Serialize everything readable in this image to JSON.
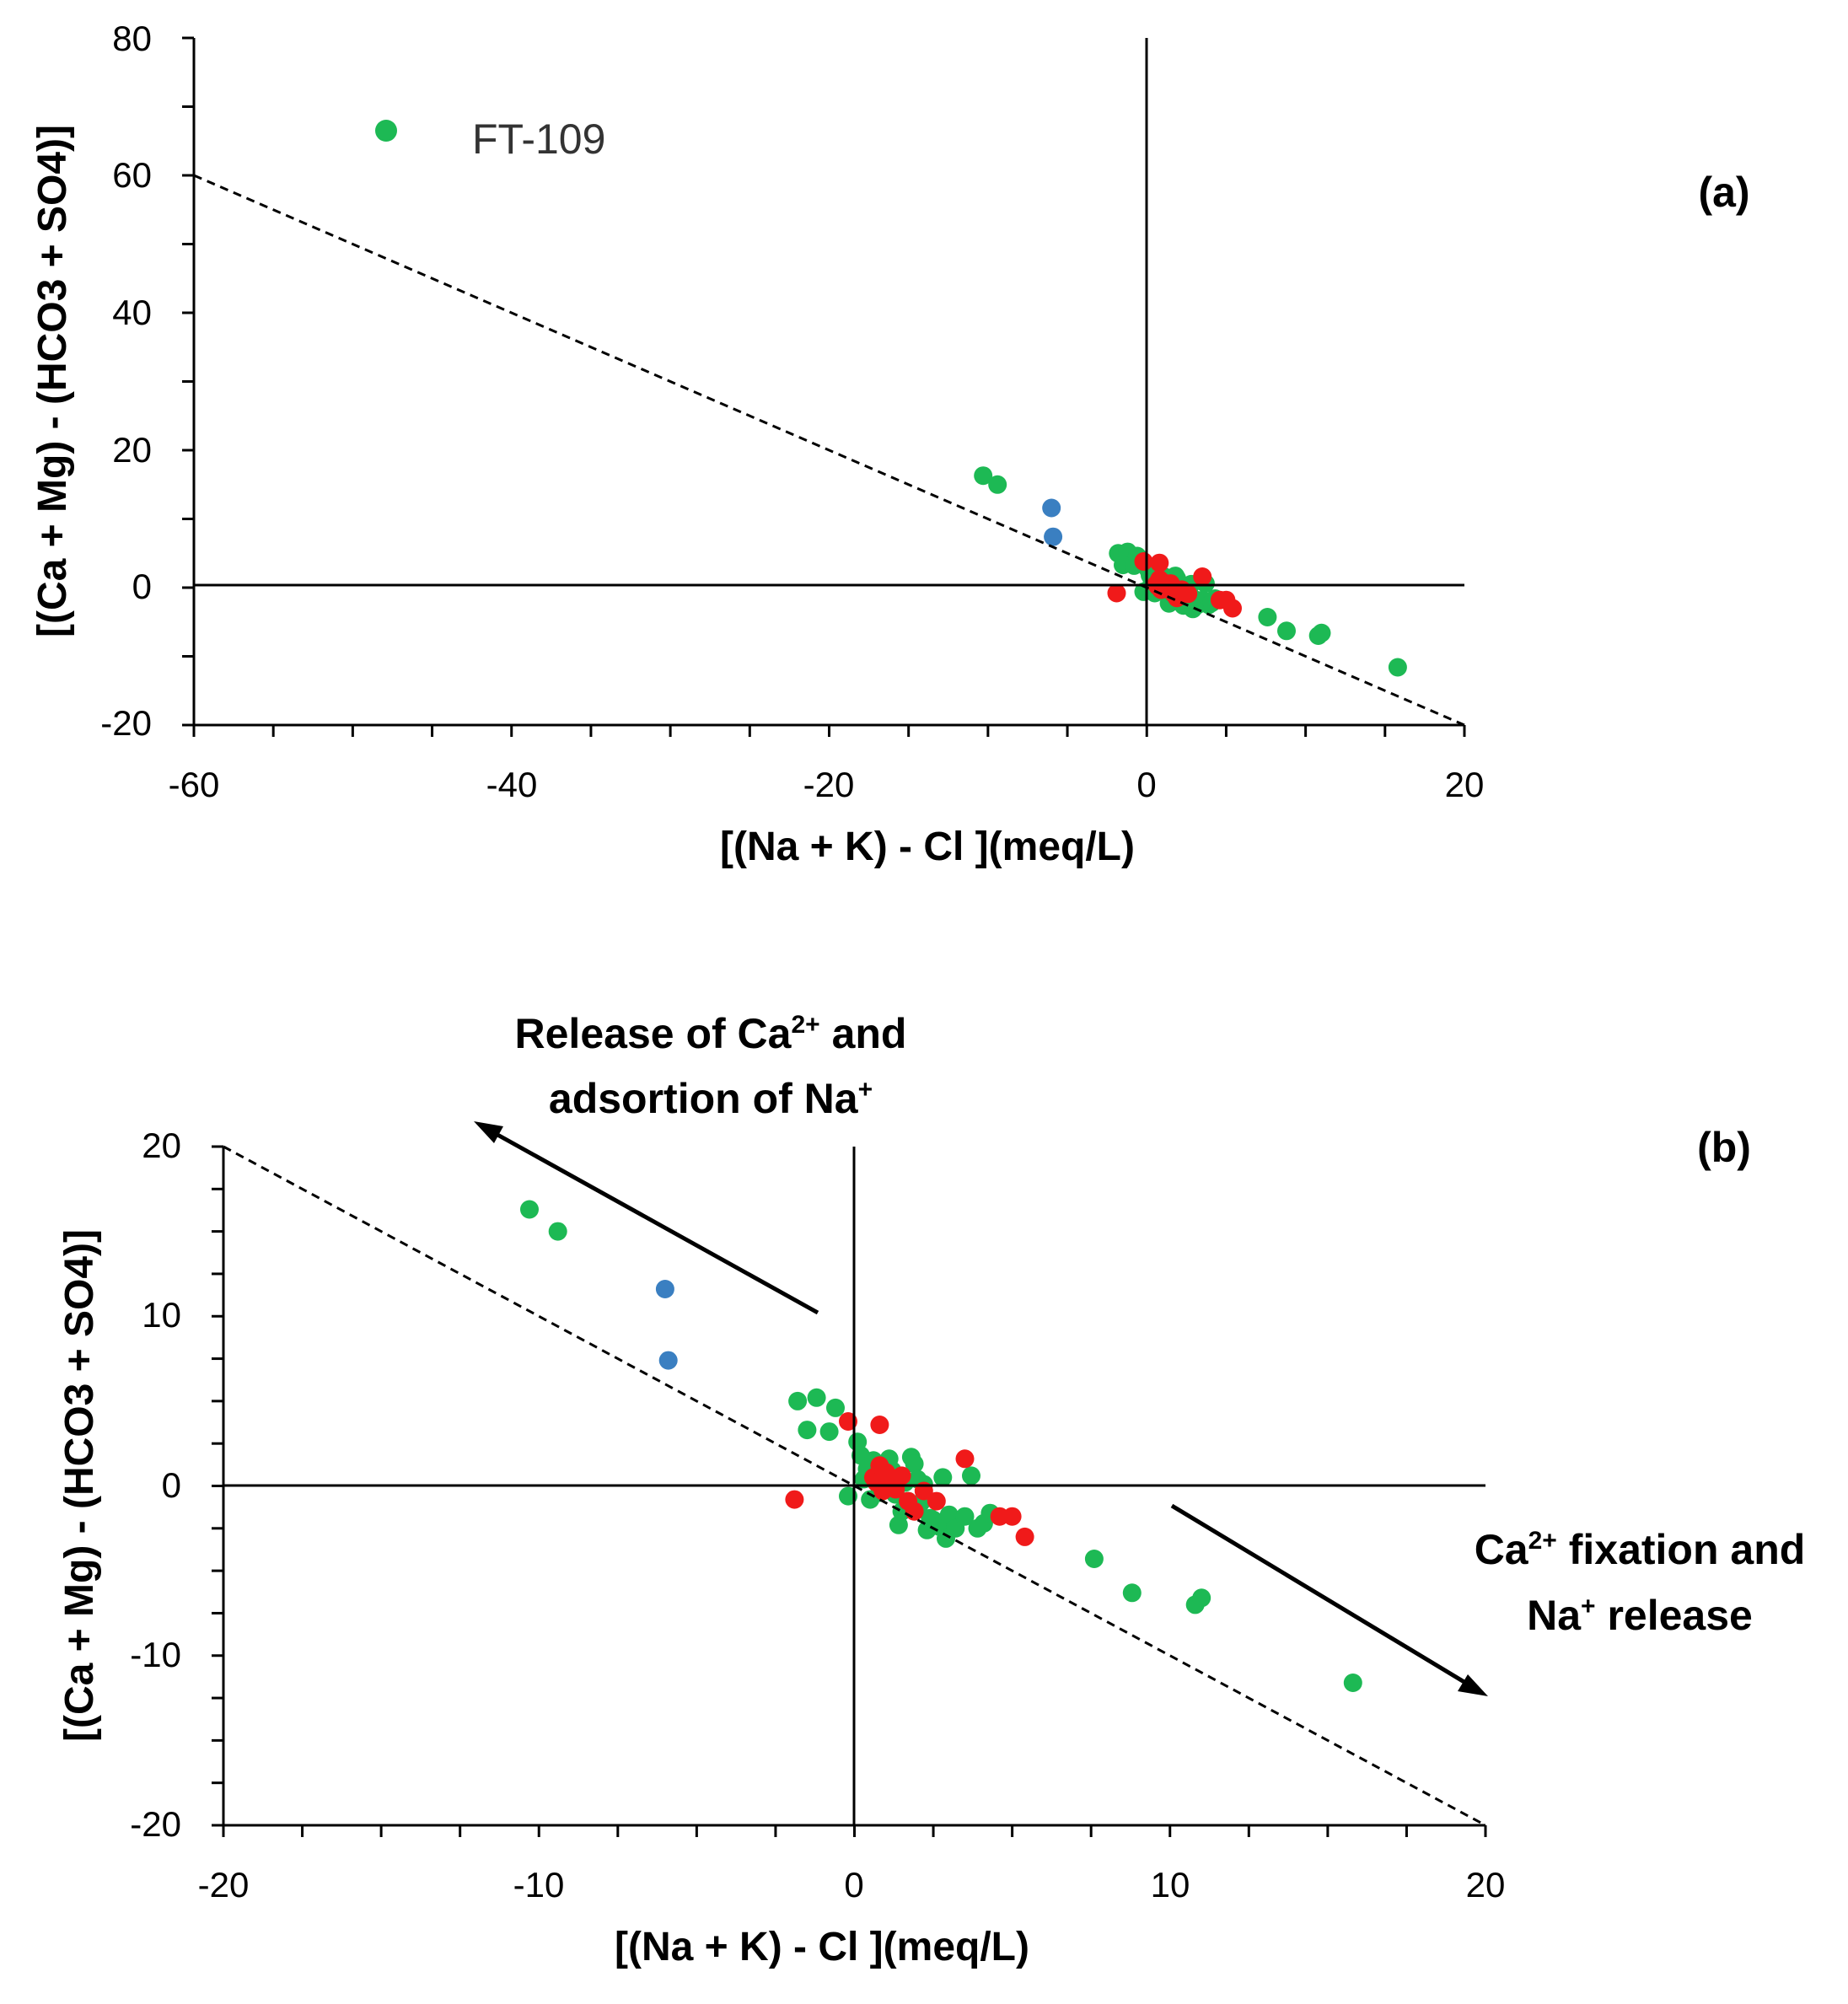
{
  "colors": {
    "green": "#1db954",
    "blue": "#3a7fc1",
    "red": "#f01a1a"
  },
  "chart_data": [
    {
      "type": "scatter",
      "panel_label": "(a)",
      "xlabel": "[(Na + K) - Cl ](meq/L)",
      "ylabel": "[(Ca + Mg) - (HCO3 + SO4)]",
      "xlim": [
        -60,
        20
      ],
      "ylim": [
        -20,
        80
      ],
      "xticks": [
        "-60",
        "-40",
        "-20",
        "0",
        "20"
      ],
      "yticks": [
        "80",
        "60",
        "40",
        "20",
        "0",
        "-20"
      ],
      "reference_line": {
        "style": "dashed",
        "from": [
          -60,
          60
        ],
        "to": [
          20,
          -20
        ]
      },
      "legend": {
        "label": "FT-109",
        "color": "#1db954",
        "position": "top-left"
      },
      "grid": false
    },
    {
      "type": "scatter",
      "panel_label": "(b)",
      "xlabel": "[(Na + K) - Cl ](meq/L)",
      "ylabel": "[(Ca + Mg) - (HCO3 + SO4)]",
      "xlim": [
        -20,
        20
      ],
      "ylim": [
        -20,
        20
      ],
      "xticks": [
        "-20",
        "-10",
        "0",
        "10",
        "20"
      ],
      "yticks": [
        "20",
        "10",
        "0",
        "-10",
        "-20"
      ],
      "reference_line": {
        "style": "dashed",
        "from": [
          -20,
          20
        ],
        "to": [
          20,
          -20
        ]
      },
      "annotations": {
        "upper_left_line1": {
          "text": "Release of Ca",
          "sup": "2+",
          "tail": " and"
        },
        "upper_left_line2": {
          "text": "adsortion of Na",
          "sup": "+"
        },
        "lower_right_line1": {
          "text": "Ca",
          "sup": "2+",
          "tail": " fixation and"
        },
        "lower_right_line2": {
          "text": "Na",
          "sup": "+",
          "tail": " release"
        }
      },
      "grid": false
    }
  ],
  "series": {
    "green": [
      [
        -10.3,
        16.3
      ],
      [
        -9.4,
        15.0
      ],
      [
        -1.8,
        5.0
      ],
      [
        -1.2,
        5.2
      ],
      [
        -1.5,
        3.3
      ],
      [
        -0.8,
        3.2
      ],
      [
        -0.6,
        4.6
      ],
      [
        -0.2,
        -0.6
      ],
      [
        0.1,
        2.6
      ],
      [
        0.2,
        1.8
      ],
      [
        0.3,
        0.4
      ],
      [
        0.4,
        1.0
      ],
      [
        0.5,
        -0.8
      ],
      [
        0.6,
        1.5
      ],
      [
        0.7,
        0.2
      ],
      [
        0.8,
        -0.4
      ],
      [
        0.9,
        0.6
      ],
      [
        1.0,
        -0.2
      ],
      [
        1.1,
        1.6
      ],
      [
        1.2,
        0.9
      ],
      [
        1.3,
        -0.5
      ],
      [
        1.4,
        -2.3
      ],
      [
        1.5,
        -1.5
      ],
      [
        1.6,
        0.2
      ],
      [
        1.7,
        -0.9
      ],
      [
        1.8,
        1.7
      ],
      [
        1.9,
        1.3
      ],
      [
        2.0,
        0.4
      ],
      [
        2.1,
        -1.0
      ],
      [
        2.2,
        0.1
      ],
      [
        2.3,
        -2.6
      ],
      [
        2.4,
        -1.9
      ],
      [
        2.5,
        -2.0
      ],
      [
        2.7,
        -2.4
      ],
      [
        2.8,
        0.5
      ],
      [
        2.9,
        -3.1
      ],
      [
        3.0,
        -1.7
      ],
      [
        3.2,
        -2.5
      ],
      [
        3.5,
        -1.8
      ],
      [
        3.7,
        0.6
      ],
      [
        3.9,
        -2.5
      ],
      [
        4.1,
        -2.2
      ],
      [
        4.3,
        -1.6
      ],
      [
        7.6,
        -4.3
      ],
      [
        8.8,
        -6.3
      ],
      [
        10.8,
        -7.0
      ],
      [
        11.0,
        -6.6
      ],
      [
        15.8,
        -11.6
      ]
    ],
    "blue": [
      [
        -6.0,
        11.6
      ],
      [
        -5.9,
        7.4
      ]
    ],
    "red": [
      [
        -1.9,
        -0.8
      ],
      [
        -0.2,
        3.8
      ],
      [
        0.6,
        0.5
      ],
      [
        0.7,
        0.2
      ],
      [
        0.8,
        1.2
      ],
      [
        0.8,
        3.6
      ],
      [
        0.9,
        -0.3
      ],
      [
        1.0,
        0.8
      ],
      [
        1.1,
        0.0
      ],
      [
        1.2,
        0.4
      ],
      [
        1.3,
        -0.2
      ],
      [
        1.5,
        0.6
      ],
      [
        1.7,
        -0.9
      ],
      [
        1.9,
        -1.5
      ],
      [
        2.2,
        -0.3
      ],
      [
        2.6,
        -0.9
      ],
      [
        3.5,
        1.6
      ],
      [
        4.6,
        -1.8
      ],
      [
        5.0,
        -1.8
      ],
      [
        5.4,
        -3.0
      ]
    ]
  }
}
